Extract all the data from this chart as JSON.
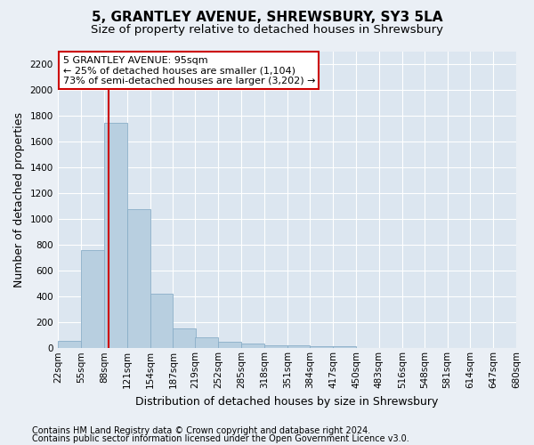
{
  "title": "5, GRANTLEY AVENUE, SHREWSBURY, SY3 5LA",
  "subtitle": "Size of property relative to detached houses in Shrewsbury",
  "xlabel": "Distribution of detached houses by size in Shrewsbury",
  "ylabel": "Number of detached properties",
  "footer_line1": "Contains HM Land Registry data © Crown copyright and database right 2024.",
  "footer_line2": "Contains public sector information licensed under the Open Government Licence v3.0.",
  "annotation_line1": "5 GRANTLEY AVENUE: 95sqm",
  "annotation_line2": "← 25% of detached houses are smaller (1,104)",
  "annotation_line3": "73% of semi-detached houses are larger (3,202) →",
  "bar_color": "#b8cfe0",
  "bar_edge_color": "#8aaec8",
  "vline_color": "#cc0000",
  "vline_x": 95,
  "bins": [
    22,
    55,
    88,
    121,
    154,
    187,
    219,
    252,
    285,
    318,
    351,
    384,
    417,
    450,
    483,
    516,
    548,
    581,
    614,
    647,
    680
  ],
  "values": [
    60,
    760,
    1745,
    1075,
    420,
    155,
    85,
    48,
    38,
    25,
    20,
    15,
    18,
    0,
    0,
    0,
    0,
    0,
    0,
    0
  ],
  "ylim": [
    0,
    2300
  ],
  "yticks": [
    0,
    200,
    400,
    600,
    800,
    1000,
    1200,
    1400,
    1600,
    1800,
    2000,
    2200
  ],
  "bg_color": "#eaeff5",
  "plot_bg_color": "#dce6f0",
  "grid_color": "#ffffff",
  "title_fontsize": 11,
  "subtitle_fontsize": 9.5,
  "label_fontsize": 9,
  "tick_fontsize": 7.5,
  "footer_fontsize": 7,
  "annot_fontsize": 8
}
